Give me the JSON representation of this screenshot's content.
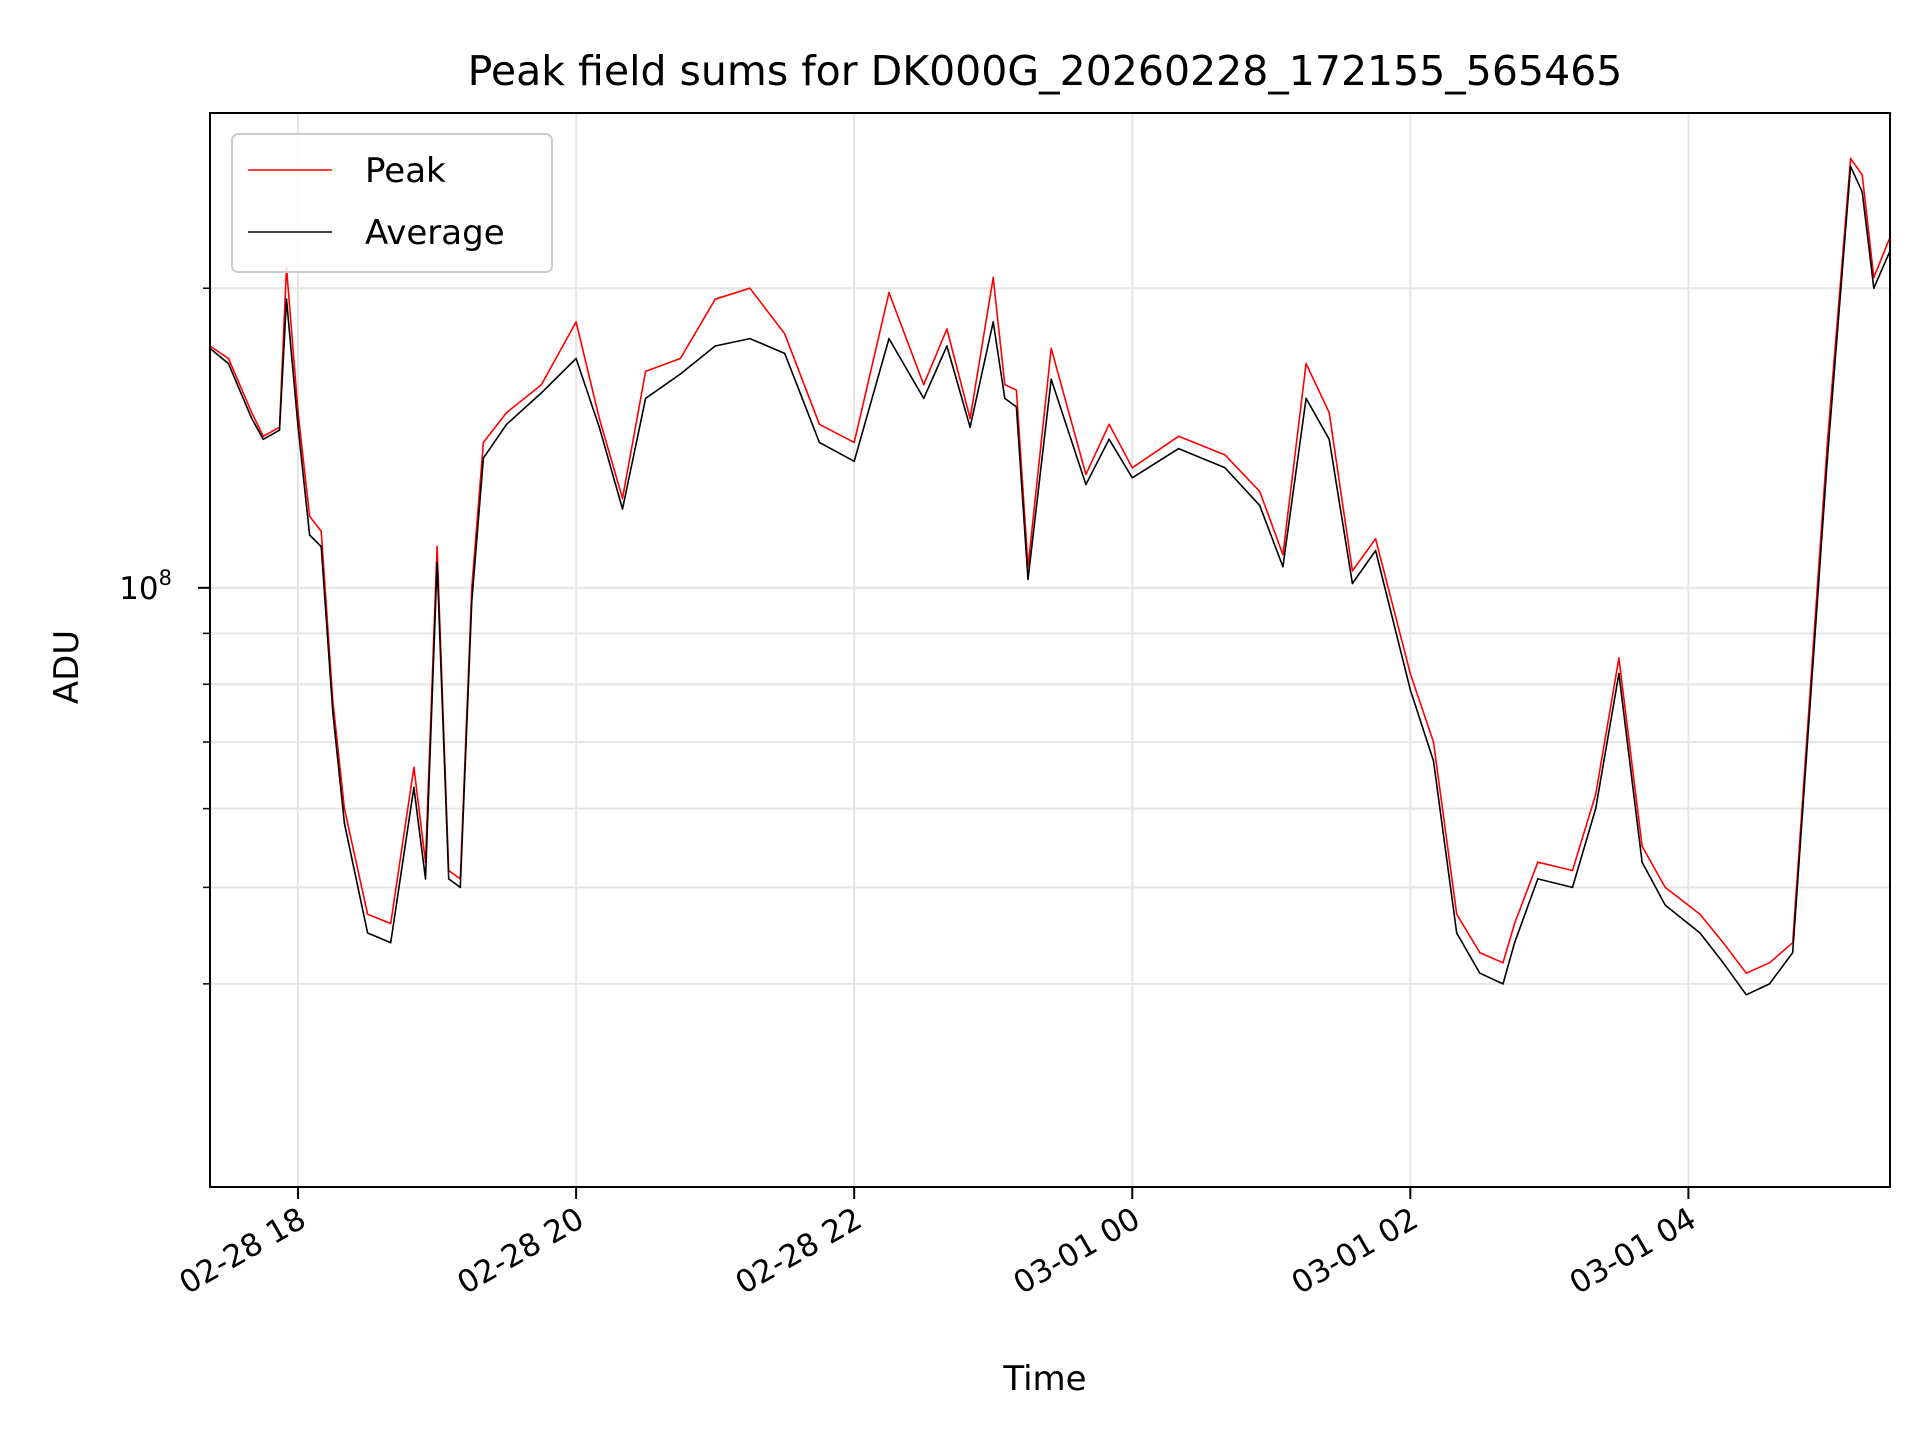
{
  "chart_data": {
    "type": "line",
    "title": "Peak field sums for DK000G_20260228_172155_565465",
    "xlabel": "Time",
    "ylabel": "ADU",
    "yscale": "log",
    "grid": true,
    "legend_position": "top-left",
    "xlim": [
      "02-28 17:22",
      "03-01 05:27"
    ],
    "ylim": [
      25000000,
      300000000
    ],
    "xticks": [
      "02-28 18",
      "02-28 20",
      "02-28 22",
      "03-01 00",
      "03-01 02",
      "03-01 04"
    ],
    "yticks": [
      {
        "value": 100000000,
        "base": "10",
        "exp": "8"
      }
    ],
    "yminor": [
      40000000,
      50000000,
      60000000,
      70000000,
      80000000,
      90000000,
      200000000
    ],
    "series": [
      {
        "name": "Peak",
        "color": "#ff0000",
        "x": [
          "02-28 17:22",
          "02-28 17:30",
          "02-28 17:40",
          "02-28 17:45",
          "02-28 17:52",
          "02-28 17:55",
          "02-28 18:00",
          "02-28 18:05",
          "02-28 18:10",
          "02-28 18:15",
          "02-28 18:20",
          "02-28 18:30",
          "02-28 18:40",
          "02-28 18:50",
          "02-28 18:55",
          "02-28 19:00",
          "02-28 19:05",
          "02-28 19:10",
          "02-28 19:15",
          "02-28 19:20",
          "02-28 19:30",
          "02-28 19:45",
          "02-28 20:00",
          "02-28 20:10",
          "02-28 20:20",
          "02-28 20:30",
          "02-28 20:45",
          "02-28 21:00",
          "02-28 21:15",
          "02-28 21:30",
          "02-28 21:45",
          "02-28 22:00",
          "02-28 22:15",
          "02-28 22:30",
          "02-28 22:40",
          "02-28 22:50",
          "02-28 23:00",
          "02-28 23:05",
          "02-28 23:10",
          "02-28 23:15",
          "02-28 23:25",
          "02-28 23:40",
          "02-28 23:50",
          "03-01 00:00",
          "03-01 00:20",
          "03-01 00:40",
          "03-01 00:55",
          "03-01 01:05",
          "03-01 01:15",
          "03-01 01:25",
          "03-01 01:35",
          "03-01 01:45",
          "03-01 02:00",
          "03-01 02:10",
          "03-01 02:20",
          "03-01 02:30",
          "03-01 02:40",
          "03-01 02:45",
          "03-01 02:55",
          "03-01 03:10",
          "03-01 03:20",
          "03-01 03:30",
          "03-01 03:40",
          "03-01 03:50",
          "03-01 04:05",
          "03-01 04:15",
          "03-01 04:25",
          "03-01 04:35",
          "03-01 04:45",
          "03-01 05:00",
          "03-01 05:10",
          "03-01 05:15",
          "03-01 05:20",
          "03-01 05:27"
        ],
        "values": [
          175000000,
          170000000,
          150000000,
          142000000,
          145000000,
          210000000,
          150000000,
          118000000,
          114000000,
          77000000,
          60000000,
          47000000,
          46000000,
          66000000,
          53000000,
          110000000,
          52000000,
          51000000,
          100000000,
          140000000,
          150000000,
          160000000,
          185000000,
          148000000,
          123000000,
          165000000,
          170000000,
          195000000,
          200000000,
          180000000,
          146000000,
          140000000,
          198000000,
          160000000,
          182000000,
          148000000,
          205000000,
          160000000,
          158000000,
          105000000,
          174000000,
          130000000,
          146000000,
          132000000,
          142000000,
          136000000,
          125000000,
          108000000,
          168000000,
          150000000,
          104000000,
          112000000,
          82000000,
          70000000,
          47000000,
          43000000,
          42000000,
          46000000,
          53000000,
          52000000,
          62000000,
          85000000,
          55000000,
          50000000,
          47000000,
          44000000,
          41000000,
          42000000,
          44000000,
          140000000,
          270000000,
          260000000,
          205000000,
          225000000
        ]
      },
      {
        "name": "Average",
        "color": "#000000",
        "x": [
          "02-28 17:22",
          "02-28 17:30",
          "02-28 17:40",
          "02-28 17:45",
          "02-28 17:52",
          "02-28 17:55",
          "02-28 18:00",
          "02-28 18:05",
          "02-28 18:10",
          "02-28 18:15",
          "02-28 18:20",
          "02-28 18:30",
          "02-28 18:40",
          "02-28 18:50",
          "02-28 18:55",
          "02-28 19:00",
          "02-28 19:05",
          "02-28 19:10",
          "02-28 19:15",
          "02-28 19:20",
          "02-28 19:30",
          "02-28 19:45",
          "02-28 20:00",
          "02-28 20:10",
          "02-28 20:20",
          "02-28 20:30",
          "02-28 20:45",
          "02-28 21:00",
          "02-28 21:15",
          "02-28 21:30",
          "02-28 21:45",
          "02-28 22:00",
          "02-28 22:15",
          "02-28 22:30",
          "02-28 22:40",
          "02-28 22:50",
          "02-28 23:00",
          "02-28 23:05",
          "02-28 23:10",
          "02-28 23:15",
          "02-28 23:25",
          "02-28 23:40",
          "02-28 23:50",
          "03-01 00:00",
          "03-01 00:20",
          "03-01 00:40",
          "03-01 00:55",
          "03-01 01:05",
          "03-01 01:15",
          "03-01 01:25",
          "03-01 01:35",
          "03-01 01:45",
          "03-01 02:00",
          "03-01 02:10",
          "03-01 02:20",
          "03-01 02:30",
          "03-01 02:40",
          "03-01 02:45",
          "03-01 02:55",
          "03-01 03:10",
          "03-01 03:20",
          "03-01 03:30",
          "03-01 03:40",
          "03-01 03:50",
          "03-01 04:05",
          "03-01 04:15",
          "03-01 04:25",
          "03-01 04:35",
          "03-01 04:45",
          "03-01 05:00",
          "03-01 05:10",
          "03-01 05:15",
          "03-01 05:20",
          "03-01 05:27"
        ],
        "values": [
          174000000,
          168000000,
          148000000,
          141000000,
          144000000,
          195000000,
          145000000,
          113000000,
          110000000,
          75000000,
          58000000,
          45000000,
          44000000,
          63000000,
          51000000,
          106000000,
          51000000,
          50000000,
          97000000,
          135000000,
          146000000,
          157000000,
          170000000,
          145000000,
          120000000,
          155000000,
          164000000,
          175000000,
          178000000,
          172000000,
          140000000,
          134000000,
          178000000,
          155000000,
          175000000,
          145000000,
          185000000,
          155000000,
          152000000,
          102000000,
          162000000,
          127000000,
          141000000,
          129000000,
          138000000,
          132000000,
          121000000,
          105000000,
          155000000,
          141000000,
          101000000,
          109000000,
          79000000,
          67000000,
          45000000,
          41000000,
          40000000,
          44000000,
          51000000,
          50000000,
          60000000,
          82000000,
          53000000,
          48000000,
          45000000,
          42000000,
          39000000,
          40000000,
          43000000,
          135000000,
          265000000,
          250000000,
          200000000,
          218000000
        ]
      }
    ]
  }
}
